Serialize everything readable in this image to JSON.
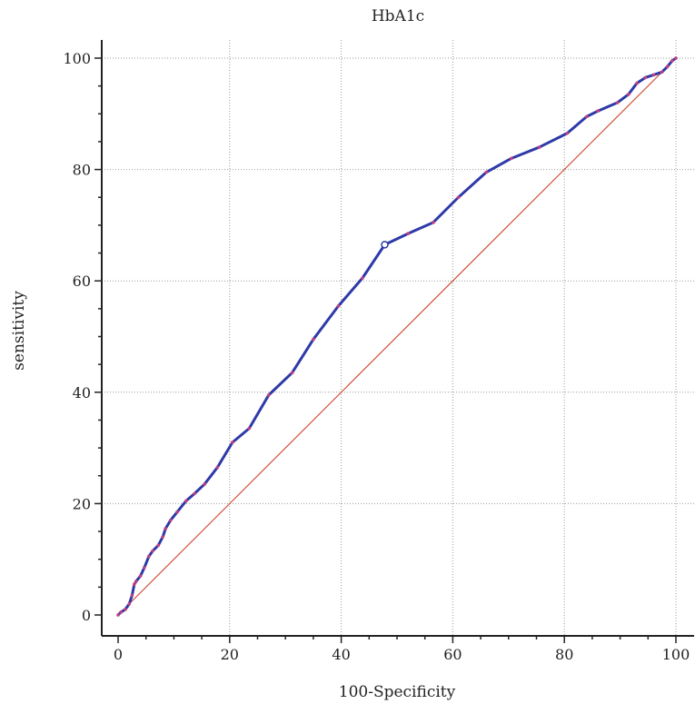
{
  "chart_data": {
    "type": "line",
    "title": "HbA1c",
    "xlabel": "100-Specificity",
    "ylabel": "sensitivity",
    "xlim": [
      0,
      100
    ],
    "ylim": [
      0,
      100
    ],
    "xticks": [
      0,
      20,
      40,
      60,
      80,
      100
    ],
    "yticks": [
      0,
      20,
      40,
      60,
      80,
      100
    ],
    "grid": true,
    "series": [
      {
        "role": "roc-curve",
        "color": "#2e3aa8",
        "marker_color": "#c04080",
        "x": [
          0,
          0.5,
          1.3,
          2.0,
          2.5,
          2.9,
          3.2,
          4.0,
          4.7,
          5.5,
          6.2,
          7.2,
          8.0,
          8.5,
          9.4,
          10.6,
          12.2,
          13.7,
          15.5,
          17.8,
          20.5,
          23.5,
          27.0,
          31.2,
          35.0,
          39.5,
          43.8,
          47.8,
          52.0,
          56.5,
          61.0,
          66.0,
          70.5,
          75.5,
          80.5,
          84.0,
          86.0,
          89.5,
          91.5,
          93.0,
          94.5,
          96.0,
          97.5,
          98.5,
          99.3,
          100
        ],
        "y": [
          0,
          0.5,
          1.0,
          2.0,
          3.5,
          5.5,
          6.0,
          7.0,
          8.5,
          10.5,
          11.5,
          12.5,
          14.0,
          15.5,
          17.0,
          18.5,
          20.5,
          21.8,
          23.5,
          26.5,
          31.0,
          33.5,
          39.5,
          43.5,
          49.5,
          55.5,
          60.5,
          66.5,
          68.5,
          70.5,
          75.0,
          79.5,
          82.0,
          84.0,
          86.5,
          89.5,
          90.5,
          92.0,
          93.5,
          95.5,
          96.5,
          97.0,
          97.5,
          98.5,
          99.5,
          100
        ],
        "marker_index": 27
      },
      {
        "role": "reference-diagonal",
        "color": "#d0503a",
        "x": [
          0,
          100
        ],
        "y": [
          0,
          100
        ]
      }
    ]
  }
}
